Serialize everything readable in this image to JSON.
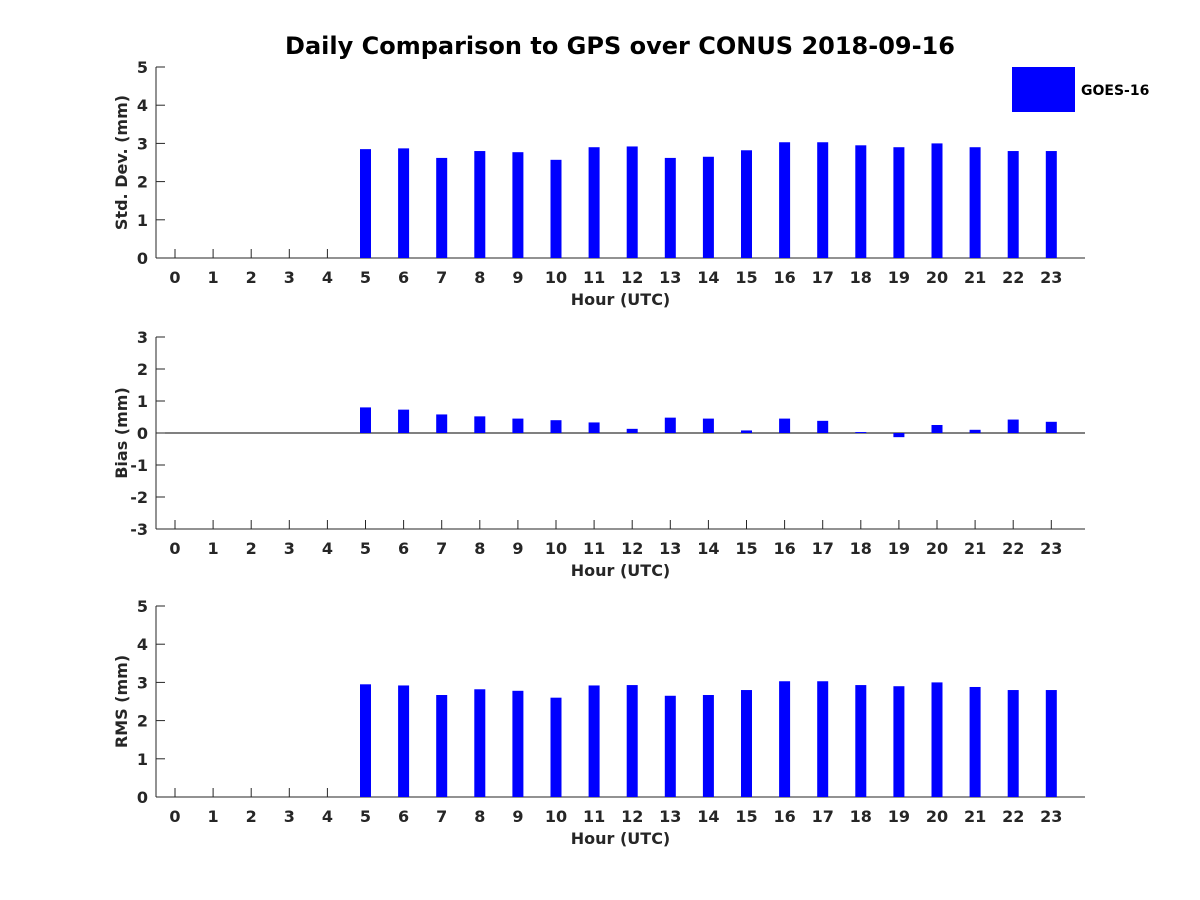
{
  "title": "Daily Comparison to GPS over CONUS 2018-09-16",
  "legend": {
    "label": "GOES-16",
    "color": "#0000ff",
    "placement": "top-right"
  },
  "chart_data": [
    {
      "type": "bar",
      "ylabel": "Std. Dev. (mm)",
      "xlabel": "Hour (UTC)",
      "ylim": [
        0,
        5
      ],
      "yticks": [
        0,
        1,
        2,
        3,
        4,
        5
      ],
      "categories": [
        "0",
        "1",
        "2",
        "3",
        "4",
        "5",
        "6",
        "7",
        "8",
        "9",
        "10",
        "11",
        "12",
        "13",
        "14",
        "15",
        "16",
        "17",
        "18",
        "19",
        "20",
        "21",
        "22",
        "23"
      ],
      "series": [
        {
          "name": "GOES-16",
          "values": [
            null,
            null,
            null,
            null,
            null,
            2.85,
            2.87,
            2.62,
            2.8,
            2.77,
            2.57,
            2.9,
            2.92,
            2.62,
            2.65,
            2.82,
            3.03,
            3.03,
            2.95,
            2.9,
            3.0,
            2.9,
            2.8,
            2.8
          ]
        }
      ]
    },
    {
      "type": "bar",
      "ylabel": "Bias (mm)",
      "xlabel": "Hour (UTC)",
      "ylim": [
        -3,
        3
      ],
      "yticks": [
        -3,
        -2,
        -1,
        0,
        1,
        2,
        3
      ],
      "categories": [
        "0",
        "1",
        "2",
        "3",
        "4",
        "5",
        "6",
        "7",
        "8",
        "9",
        "10",
        "11",
        "12",
        "13",
        "14",
        "15",
        "16",
        "17",
        "18",
        "19",
        "20",
        "21",
        "22",
        "23"
      ],
      "series": [
        {
          "name": "GOES-16",
          "values": [
            null,
            null,
            null,
            null,
            null,
            0.8,
            0.73,
            0.58,
            0.52,
            0.45,
            0.4,
            0.33,
            0.13,
            0.48,
            0.45,
            0.08,
            0.45,
            0.38,
            0.03,
            -0.13,
            0.25,
            0.1,
            0.42,
            0.35
          ]
        }
      ]
    },
    {
      "type": "bar",
      "ylabel": "RMS (mm)",
      "xlabel": "Hour (UTC)",
      "ylim": [
        0,
        5
      ],
      "yticks": [
        0,
        1,
        2,
        3,
        4,
        5
      ],
      "categories": [
        "0",
        "1",
        "2",
        "3",
        "4",
        "5",
        "6",
        "7",
        "8",
        "9",
        "10",
        "11",
        "12",
        "13",
        "14",
        "15",
        "16",
        "17",
        "18",
        "19",
        "20",
        "21",
        "22",
        "23"
      ],
      "series": [
        {
          "name": "GOES-16",
          "values": [
            null,
            null,
            null,
            null,
            null,
            2.95,
            2.92,
            2.67,
            2.82,
            2.78,
            2.6,
            2.92,
            2.93,
            2.65,
            2.67,
            2.8,
            3.03,
            3.03,
            2.93,
            2.9,
            3.0,
            2.88,
            2.8,
            2.8
          ]
        }
      ]
    }
  ]
}
